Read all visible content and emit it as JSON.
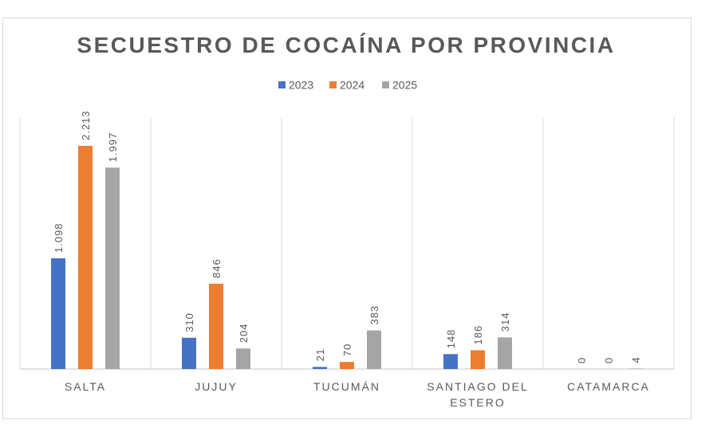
{
  "chart_data": {
    "type": "bar",
    "title": "SECUESTRO DE COCAÍNA POR PROVINCIA",
    "categories": [
      "SALTA",
      "JUJUY",
      "TUCUMÁN",
      "SANTIAGO DEL ESTERO",
      "CATAMARCA"
    ],
    "series": [
      {
        "name": "2023",
        "color": "#4472c4",
        "values": [
          1098,
          310,
          21,
          148,
          0
        ],
        "labels": [
          "1.098",
          "310",
          "21",
          "148",
          "0"
        ]
      },
      {
        "name": "2024",
        "color": "#ed7d31",
        "values": [
          2213,
          846,
          70,
          186,
          0
        ],
        "labels": [
          "2.213",
          "846",
          "70",
          "186",
          "0"
        ]
      },
      {
        "name": "2025",
        "color": "#a5a5a5",
        "values": [
          1997,
          204,
          383,
          314,
          4
        ],
        "labels": [
          "1.997",
          "204",
          "383",
          "314",
          "4"
        ]
      }
    ],
    "xlabel": "",
    "ylabel": "",
    "ylim": [
      0,
      2500
    ],
    "legend": "top",
    "grid": "vertical category separators",
    "data_labels": "rotated, above bars"
  }
}
